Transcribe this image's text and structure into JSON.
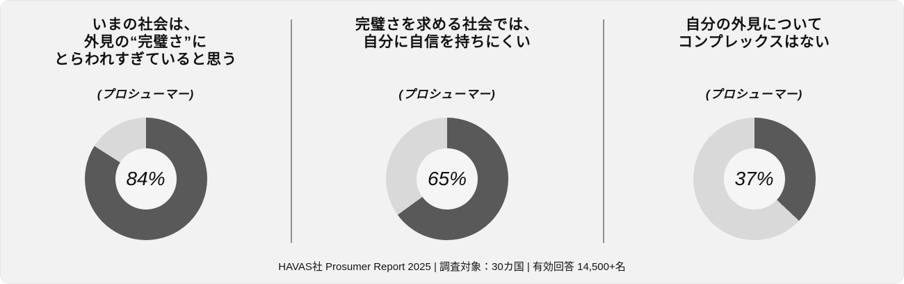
{
  "colors": {
    "background": "#f2f2f2",
    "dark_segment": "#595959",
    "light_segment": "#d9d9d9",
    "hole": "#f5f5f5",
    "divider": "#8f8f8f",
    "text": "#111111"
  },
  "panels": [
    {
      "title": "いまの社会は、\n外見の“完璧さ”に\nとらわれすぎていると思う",
      "subtitle": "(プロシューマー)",
      "value_label": "84%"
    },
    {
      "title": "完璧さを求める社会では、\n自分に自信を持ちにくい",
      "subtitle": "(プロシューマー)",
      "value_label": "65%"
    },
    {
      "title": "自分の外見について\nコンプレックスはない",
      "subtitle": "(プロシューマー)",
      "value_label": "37%"
    }
  ],
  "footer": "HAVAS社 Prosumer Report 2025 | 調査対象：30カ国  | 有効回答 14,500+名",
  "chart_data": [
    {
      "type": "pie",
      "subtype": "donut",
      "title": "いまの社会は、外見の“完璧さ”にとらわれすぎていると思う (プロシューマー)",
      "values": [
        84,
        16
      ],
      "center_label": "84%",
      "colors": [
        "#595959",
        "#d9d9d9"
      ],
      "start_angle_deg": 0,
      "direction": "clockwise",
      "hole_ratio": 0.5,
      "legend": "none"
    },
    {
      "type": "pie",
      "subtype": "donut",
      "title": "完璧さを求める社会では、自分に自信を持ちにくい (プロシューマー)",
      "values": [
        65,
        35
      ],
      "center_label": "65%",
      "colors": [
        "#595959",
        "#d9d9d9"
      ],
      "start_angle_deg": 0,
      "direction": "clockwise",
      "hole_ratio": 0.5,
      "legend": "none"
    },
    {
      "type": "pie",
      "subtype": "donut",
      "title": "自分の外見についてコンプレックスはない (プロシューマー)",
      "values": [
        37,
        63
      ],
      "center_label": "37%",
      "colors": [
        "#595959",
        "#d9d9d9"
      ],
      "start_angle_deg": 0,
      "direction": "clockwise",
      "hole_ratio": 0.5,
      "legend": "none"
    }
  ]
}
